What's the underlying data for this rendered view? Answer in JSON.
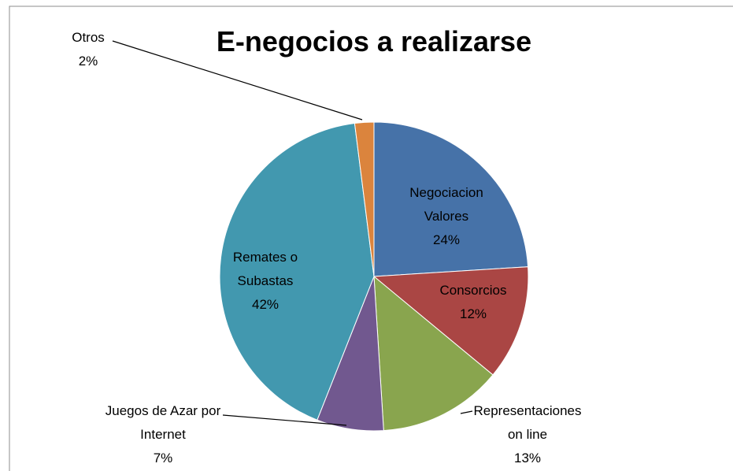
{
  "chart_data": {
    "type": "pie",
    "title": "E-negocios a realizarse",
    "categories": [
      "Negociacion Valores",
      "Consorcios",
      "Representaciones on line",
      "Juegos de Azar por Internet",
      "Remates o Subastas",
      "Otros"
    ],
    "values": [
      24,
      12,
      13,
      7,
      42,
      2
    ],
    "value_labels": [
      "24%",
      "12%",
      "13%",
      "7%",
      "42%",
      "2%"
    ],
    "colors": [
      "#4672a8",
      "#aa4644",
      "#89a54e",
      "#71588f",
      "#4298af",
      "#db843d"
    ]
  }
}
